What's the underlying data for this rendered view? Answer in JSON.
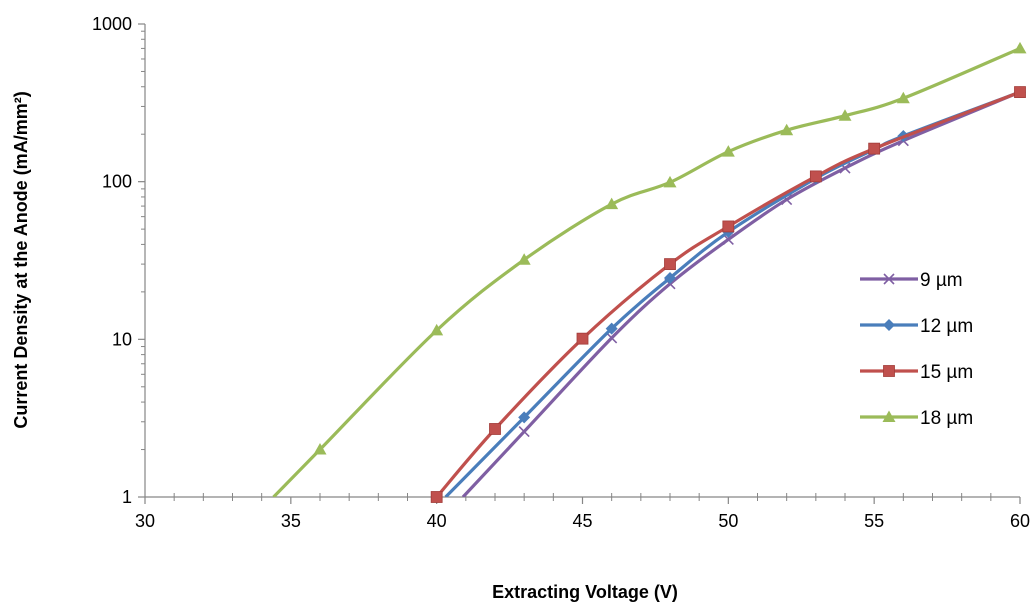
{
  "chart_data": {
    "type": "line",
    "title": "",
    "xlabel": "Extracting Voltage (V)",
    "ylabel": "Current Density at the Anode (mA/mm²)",
    "xlim": [
      30,
      60
    ],
    "ylim": [
      1,
      1000
    ],
    "yscale": "log",
    "xticks": [
      30,
      35,
      40,
      45,
      50,
      55,
      60
    ],
    "xtick_labels": [
      "30",
      "35",
      "40",
      "45",
      "50",
      "55",
      "60"
    ],
    "yticks": [
      1,
      10,
      100,
      1000
    ],
    "ytick_labels": [
      "1",
      "10",
      "100",
      "1000"
    ],
    "grid": false,
    "legend_position": "right",
    "series": [
      {
        "name": "9 µm",
        "color": "#7f5fa3",
        "marker": "x",
        "x": [
          43,
          46,
          48,
          50,
          52,
          54,
          56,
          60
        ],
        "y": [
          2.6,
          10.2,
          22.5,
          43,
          77,
          122,
          182,
          370
        ]
      },
      {
        "name": "12 µm",
        "color": "#4a7ebb",
        "marker": "diamond",
        "x": [
          43,
          46,
          48,
          50,
          53,
          55,
          56,
          60
        ],
        "y": [
          3.2,
          11.7,
          24.5,
          48,
          105,
          160,
          195,
          370
        ]
      },
      {
        "name": "15 µm",
        "color": "#c0504d",
        "marker": "square",
        "x": [
          40,
          42,
          45,
          48,
          50,
          53,
          55,
          60
        ],
        "y": [
          1.0,
          2.7,
          10.1,
          30,
          52,
          108,
          162,
          370
        ]
      },
      {
        "name": "18 µm",
        "color": "#9bbb59",
        "marker": "triangle",
        "x": [
          36,
          40,
          43,
          46,
          48,
          50,
          52,
          54,
          56,
          60
        ],
        "y": [
          2.0,
          11.4,
          32,
          72,
          99,
          155,
          212,
          262,
          338,
          700
        ]
      }
    ]
  }
}
